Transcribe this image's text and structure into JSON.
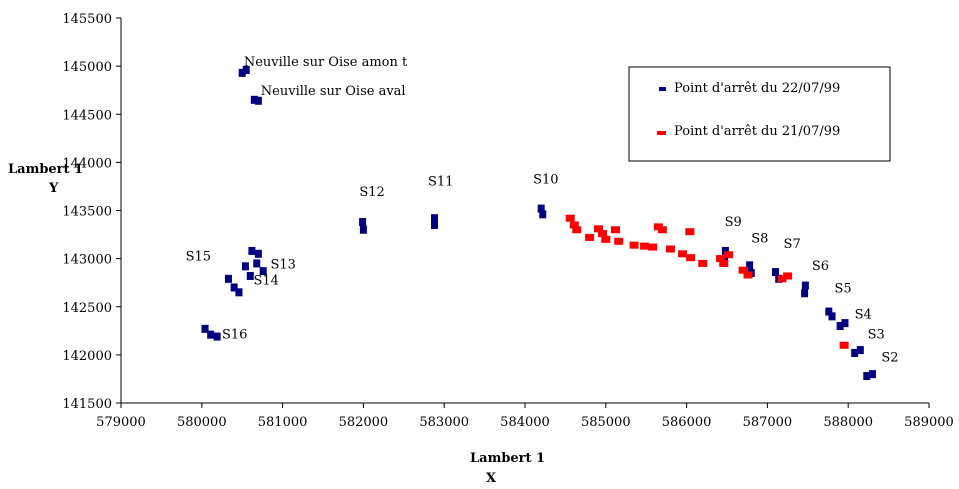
{
  "chart_data": {
    "type": "scatter",
    "xlabel": [
      "Lambert 1",
      "X"
    ],
    "ylabel": [
      "Lambert 1",
      "Y"
    ],
    "xlim": [
      579000,
      589000
    ],
    "ylim": [
      141500,
      145500
    ],
    "xticks": [
      579000,
      580000,
      581000,
      582000,
      583000,
      584000,
      585000,
      586000,
      587000,
      588000,
      589000
    ],
    "yticks": [
      141500,
      142000,
      142500,
      143000,
      143500,
      144000,
      144500,
      145000,
      145500
    ],
    "legend_position": "top-right",
    "series": [
      {
        "name": "Point d'arrêt du 22/07/99",
        "color": "#000080",
        "points": [
          {
            "x": 580500,
            "y": 144930
          },
          {
            "x": 580550,
            "y": 144960
          },
          {
            "x": 580650,
            "y": 144650
          },
          {
            "x": 580700,
            "y": 144640
          },
          {
            "x": 581990,
            "y": 143380
          },
          {
            "x": 582000,
            "y": 143300
          },
          {
            "x": 582880,
            "y": 143420
          },
          {
            "x": 582880,
            "y": 143350
          },
          {
            "x": 584200,
            "y": 143520
          },
          {
            "x": 584220,
            "y": 143460
          },
          {
            "x": 580620,
            "y": 143080
          },
          {
            "x": 580700,
            "y": 143050
          },
          {
            "x": 580680,
            "y": 142950
          },
          {
            "x": 580760,
            "y": 142870
          },
          {
            "x": 580540,
            "y": 142920
          },
          {
            "x": 580600,
            "y": 142820
          },
          {
            "x": 580330,
            "y": 142790
          },
          {
            "x": 580400,
            "y": 142700
          },
          {
            "x": 580460,
            "y": 142650
          },
          {
            "x": 580040,
            "y": 142270
          },
          {
            "x": 580110,
            "y": 142210
          },
          {
            "x": 580190,
            "y": 142190
          },
          {
            "x": 586480,
            "y": 143080
          },
          {
            "x": 586470,
            "y": 142980
          },
          {
            "x": 586780,
            "y": 142930
          },
          {
            "x": 586800,
            "y": 142850
          },
          {
            "x": 587100,
            "y": 142860
          },
          {
            "x": 587140,
            "y": 142790
          },
          {
            "x": 587470,
            "y": 142720
          },
          {
            "x": 587460,
            "y": 142640
          },
          {
            "x": 587760,
            "y": 142450
          },
          {
            "x": 587800,
            "y": 142400
          },
          {
            "x": 587900,
            "y": 142300
          },
          {
            "x": 587960,
            "y": 142330
          },
          {
            "x": 588150,
            "y": 142050
          },
          {
            "x": 588080,
            "y": 142020
          },
          {
            "x": 588230,
            "y": 141780
          },
          {
            "x": 588300,
            "y": 141800
          }
        ]
      },
      {
        "name": "Point d'arrêt du 21/07/99",
        "color": "#ff0000",
        "points": [
          {
            "x": 584560,
            "y": 143420
          },
          {
            "x": 584610,
            "y": 143350
          },
          {
            "x": 584640,
            "y": 143300
          },
          {
            "x": 584800,
            "y": 143220
          },
          {
            "x": 584910,
            "y": 143310
          },
          {
            "x": 584960,
            "y": 143260
          },
          {
            "x": 585000,
            "y": 143200
          },
          {
            "x": 585120,
            "y": 143300
          },
          {
            "x": 585160,
            "y": 143180
          },
          {
            "x": 585350,
            "y": 143140
          },
          {
            "x": 585480,
            "y": 143130
          },
          {
            "x": 585580,
            "y": 143120
          },
          {
            "x": 585650,
            "y": 143330
          },
          {
            "x": 585700,
            "y": 143300
          },
          {
            "x": 585800,
            "y": 143100
          },
          {
            "x": 585950,
            "y": 143050
          },
          {
            "x": 586040,
            "y": 143280
          },
          {
            "x": 586050,
            "y": 143010
          },
          {
            "x": 586200,
            "y": 142950
          },
          {
            "x": 586420,
            "y": 143000
          },
          {
            "x": 586460,
            "y": 142950
          },
          {
            "x": 586520,
            "y": 143040
          },
          {
            "x": 586700,
            "y": 142880
          },
          {
            "x": 586760,
            "y": 142830
          },
          {
            "x": 587180,
            "y": 142790
          },
          {
            "x": 587250,
            "y": 142820
          },
          {
            "x": 587950,
            "y": 142100
          }
        ]
      }
    ],
    "annotations": [
      {
        "text": "Neuville sur Oise amon  t",
        "x": 580520,
        "y": 145000
      },
      {
        "text": "Neuville sur Oise aval",
        "x": 580730,
        "y": 144700
      },
      {
        "text": "S12",
        "x": 581950,
        "y": 143650
      },
      {
        "text": "S11",
        "x": 582800,
        "y": 143760
      },
      {
        "text": "S10",
        "x": 584100,
        "y": 143780
      },
      {
        "text": "S15",
        "x": 579800,
        "y": 142980
      },
      {
        "text": "S13",
        "x": 580850,
        "y": 142900
      },
      {
        "text": "S14",
        "x": 580640,
        "y": 142730
      },
      {
        "text": "S16",
        "x": 580250,
        "y": 142170
      },
      {
        "text": "S9",
        "x": 586470,
        "y": 143340
      },
      {
        "text": "S8",
        "x": 586800,
        "y": 143170
      },
      {
        "text": "S7",
        "x": 587200,
        "y": 143110
      },
      {
        "text": "S6",
        "x": 587550,
        "y": 142880
      },
      {
        "text": "S5",
        "x": 587830,
        "y": 142650
      },
      {
        "text": "S4",
        "x": 588080,
        "y": 142380
      },
      {
        "text": "S3",
        "x": 588240,
        "y": 142170
      },
      {
        "text": "S2",
        "x": 588410,
        "y": 141930
      }
    ]
  }
}
